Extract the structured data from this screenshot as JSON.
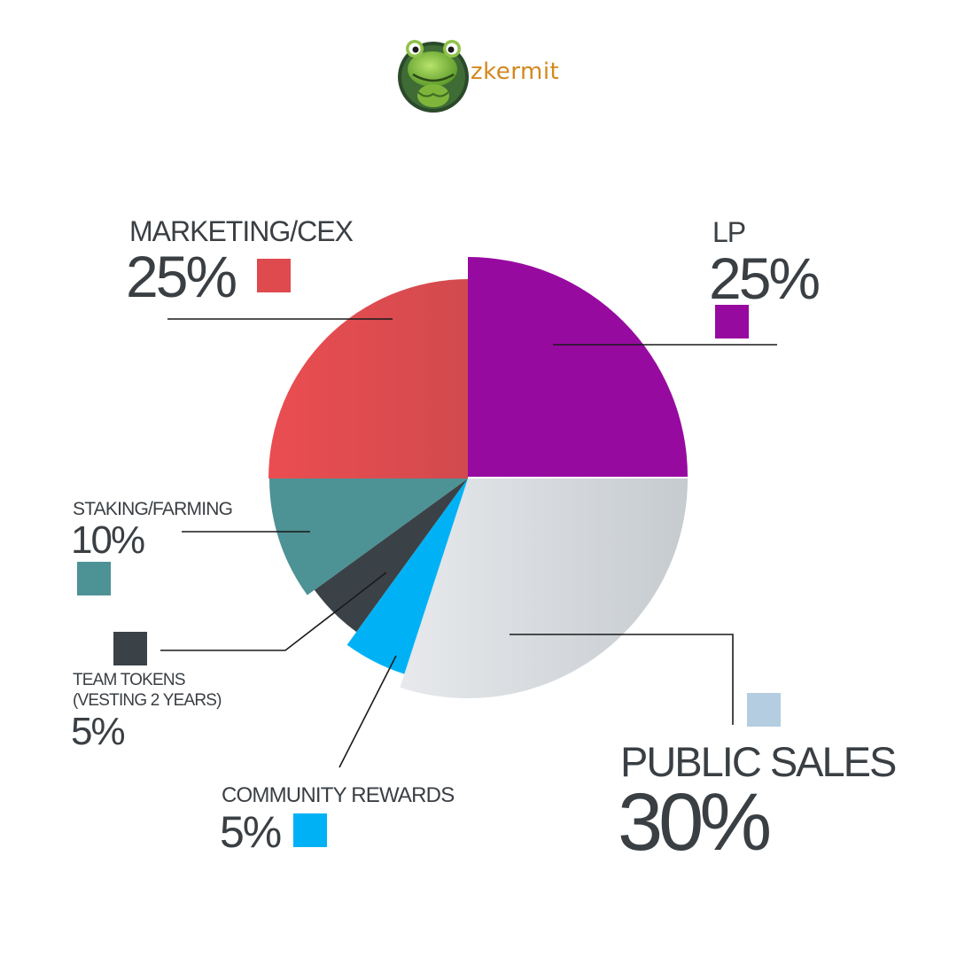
{
  "brand": {
    "name": "zkermit",
    "logo_icon": "frog-logo-icon"
  },
  "chart_data": {
    "type": "pie",
    "title": "",
    "slices": [
      {
        "label": "LP",
        "value": 25,
        "value_label": "25%",
        "color": "#970aa0"
      },
      {
        "label": "PUBLIC SALES",
        "value": 30,
        "value_label": "30%",
        "color": "#d2d6da",
        "swatch_color": "#b5cde0"
      },
      {
        "label": "COMMUNITY REWARDS",
        "value": 5,
        "value_label": "5%",
        "color": "#00b2f5"
      },
      {
        "label": "TEAM TOKENS\n(VESTING 2 YEARS)",
        "value": 5,
        "value_label": "5%",
        "color": "#3b4247"
      },
      {
        "label": "STAKING/FARMING",
        "value": 10,
        "value_label": "10%",
        "color": "#4d9295"
      },
      {
        "label": "MARKETING/CEX",
        "value": 25,
        "value_label": "25%",
        "color": "#de4a4e"
      }
    ]
  }
}
